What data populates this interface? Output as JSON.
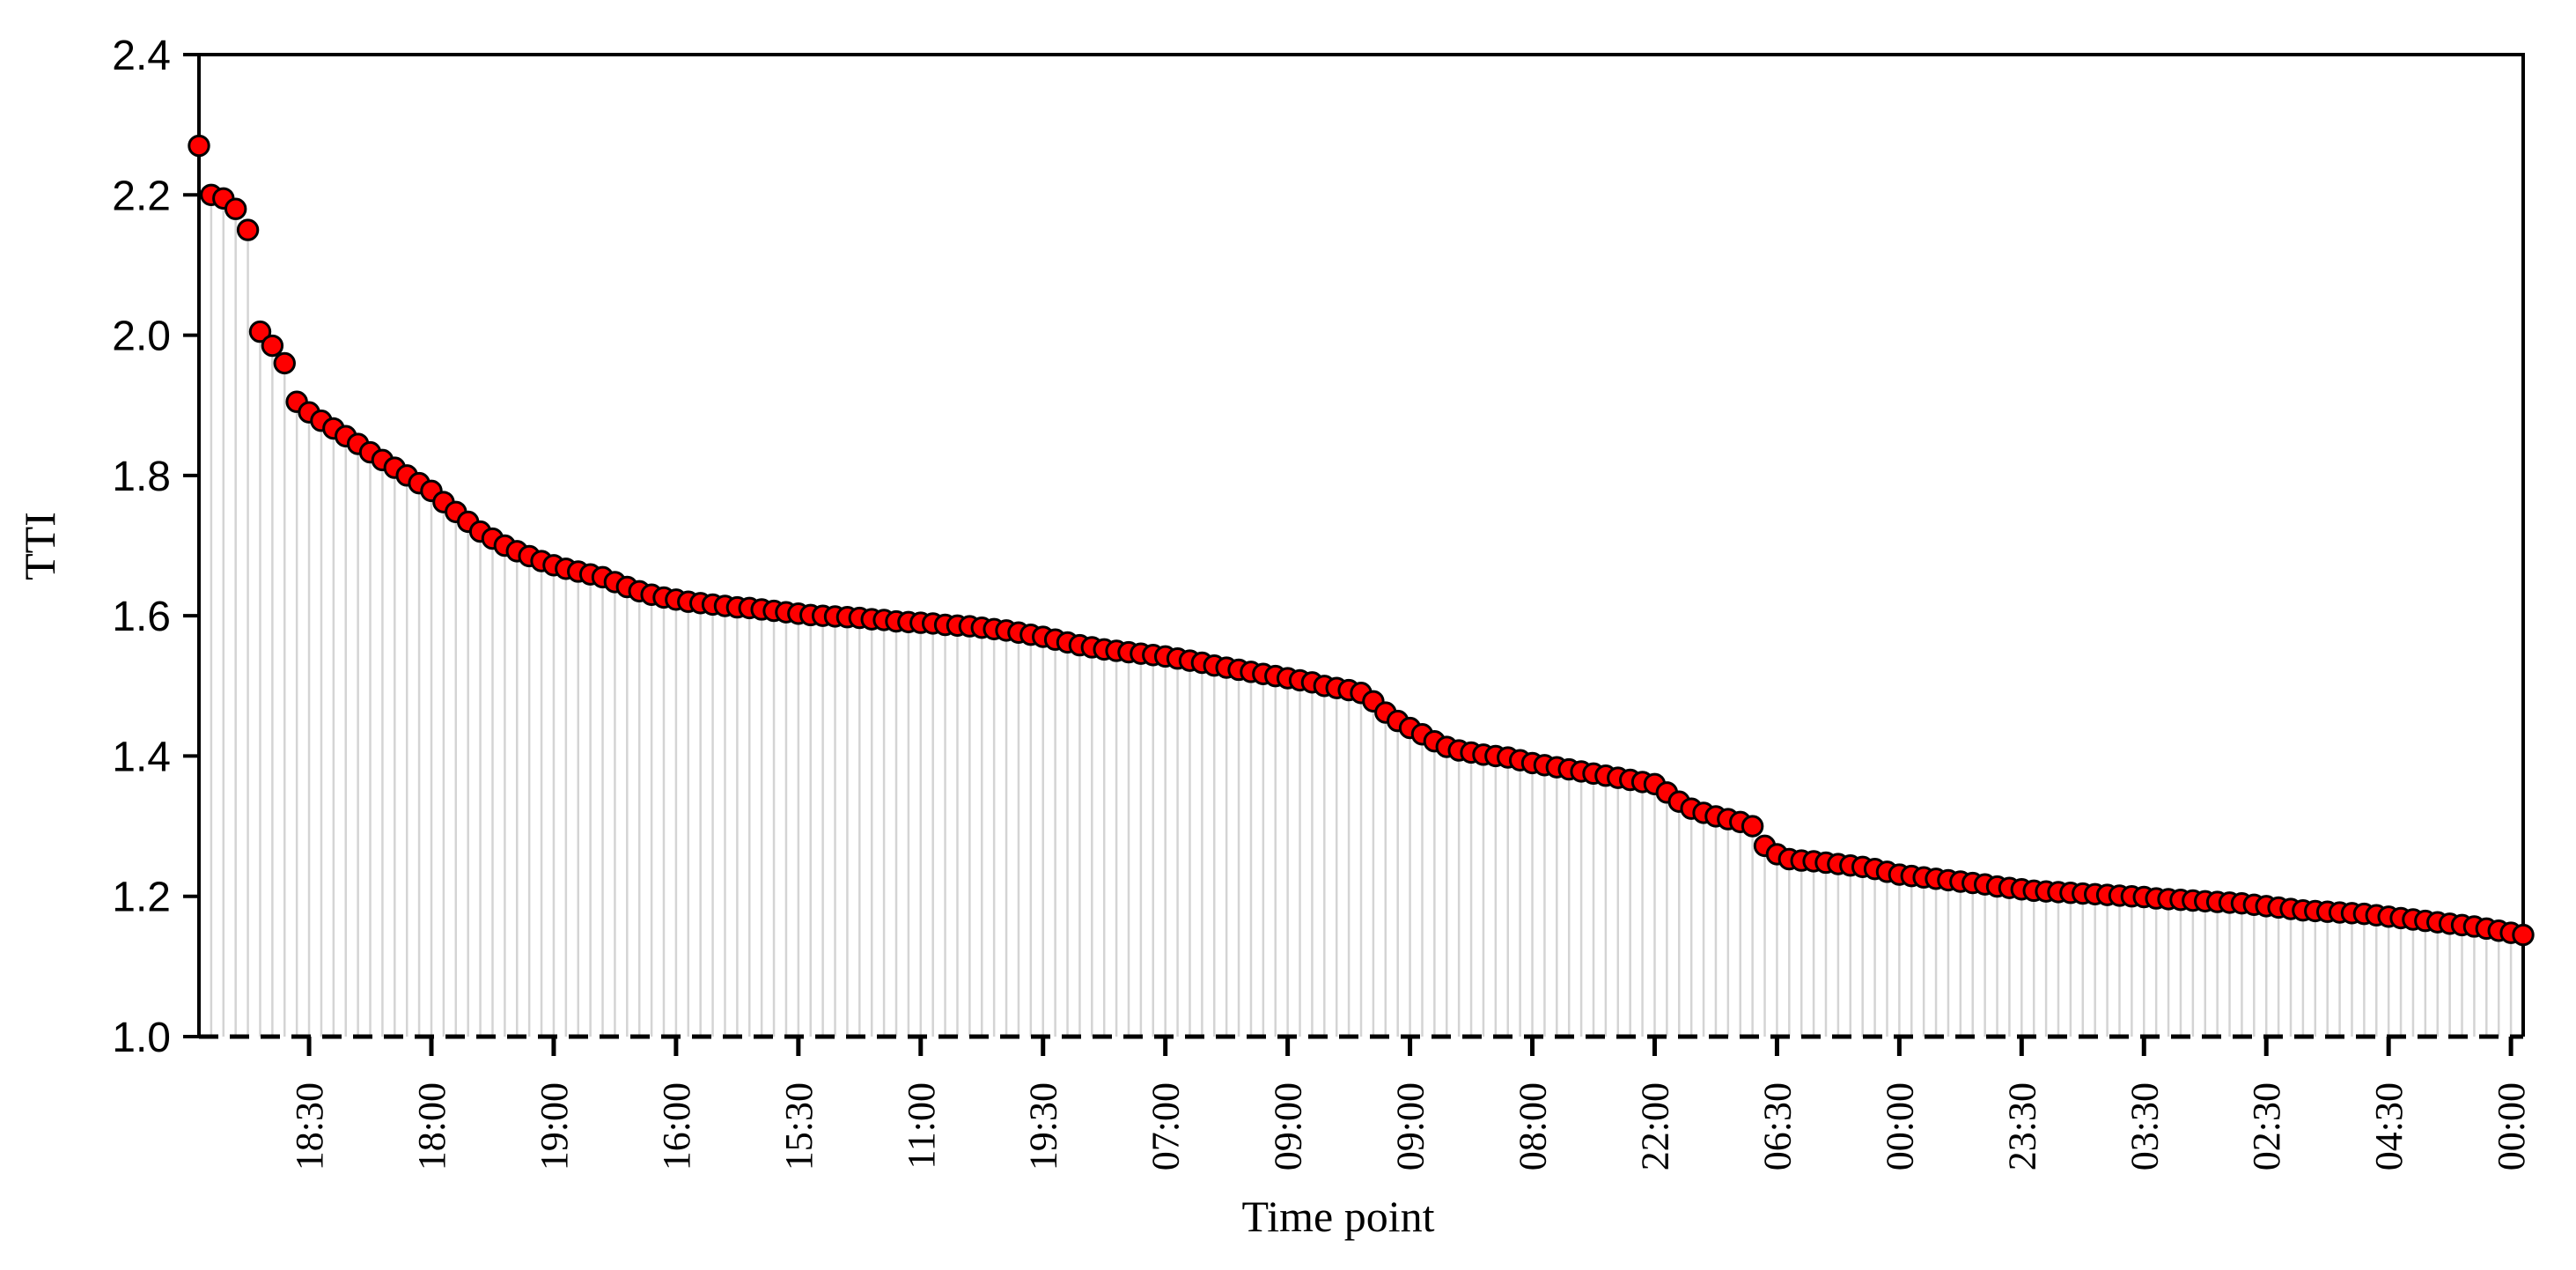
{
  "chart_data": {
    "type": "scatter",
    "subtype": "stem-drop-lines",
    "title": "",
    "xlabel": "Time point",
    "ylabel": "TTI",
    "ylim": [
      1.0,
      2.4
    ],
    "ytick_labels": [
      "1.0",
      "1.2",
      "1.4",
      "1.6",
      "1.8",
      "2.0",
      "2.2",
      "2.4"
    ],
    "x_tick_every": 10,
    "x_tick_labels": [
      "18:30",
      "18:00",
      "19:00",
      "16:00",
      "15:30",
      "11:00",
      "19:30",
      "07:00",
      "09:00",
      "09:00",
      "08:00",
      "22:00",
      "06:30",
      "00:00",
      "23:30",
      "03:30",
      "02:30",
      "04:30",
      "00:00"
    ],
    "grid": false,
    "legend": "none",
    "n_points": 191,
    "values": [
      2.27,
      2.2,
      2.195,
      2.18,
      2.15,
      2.005,
      1.985,
      1.96,
      1.905,
      1.89,
      1.878,
      1.867,
      1.856,
      1.845,
      1.833,
      1.822,
      1.811,
      1.8,
      1.789,
      1.778,
      1.762,
      1.748,
      1.734,
      1.72,
      1.71,
      1.7,
      1.692,
      1.685,
      1.678,
      1.672,
      1.667,
      1.663,
      1.659,
      1.655,
      1.648,
      1.641,
      1.635,
      1.63,
      1.626,
      1.623,
      1.62,
      1.618,
      1.616,
      1.614,
      1.612,
      1.611,
      1.609,
      1.607,
      1.605,
      1.603,
      1.601,
      1.6,
      1.599,
      1.598,
      1.597,
      1.595,
      1.594,
      1.592,
      1.591,
      1.59,
      1.589,
      1.587,
      1.586,
      1.585,
      1.583,
      1.581,
      1.579,
      1.576,
      1.573,
      1.57,
      1.566,
      1.562,
      1.558,
      1.555,
      1.552,
      1.55,
      1.548,
      1.546,
      1.544,
      1.542,
      1.539,
      1.536,
      1.533,
      1.529,
      1.526,
      1.523,
      1.52,
      1.517,
      1.514,
      1.511,
      1.508,
      1.505,
      1.5,
      1.497,
      1.494,
      1.49,
      1.478,
      1.462,
      1.45,
      1.44,
      1.431,
      1.421,
      1.413,
      1.408,
      1.405,
      1.402,
      1.4,
      1.398,
      1.394,
      1.39,
      1.387,
      1.384,
      1.381,
      1.378,
      1.375,
      1.372,
      1.369,
      1.366,
      1.363,
      1.36,
      1.348,
      1.335,
      1.325,
      1.319,
      1.314,
      1.31,
      1.306,
      1.3,
      1.272,
      1.26,
      1.253,
      1.251,
      1.25,
      1.248,
      1.246,
      1.244,
      1.242,
      1.239,
      1.235,
      1.231,
      1.229,
      1.227,
      1.225,
      1.223,
      1.221,
      1.219,
      1.217,
      1.214,
      1.212,
      1.21,
      1.208,
      1.207,
      1.206,
      1.205,
      1.204,
      1.203,
      1.202,
      1.201,
      1.2,
      1.199,
      1.197,
      1.196,
      1.195,
      1.194,
      1.193,
      1.192,
      1.191,
      1.19,
      1.188,
      1.186,
      1.184,
      1.182,
      1.18,
      1.179,
      1.178,
      1.177,
      1.176,
      1.175,
      1.173,
      1.171,
      1.169,
      1.167,
      1.165,
      1.163,
      1.161,
      1.159,
      1.157,
      1.154,
      1.151,
      1.148,
      1.145
    ],
    "colors": {
      "marker_fill": "#fe0000",
      "marker_stroke": "#000000",
      "stem": "#d4d4d4",
      "axis": "#000000",
      "background": "#ffffff"
    }
  }
}
